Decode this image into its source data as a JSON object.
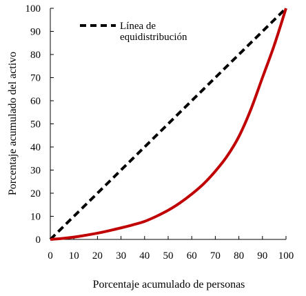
{
  "chart_data": {
    "type": "line",
    "title": "",
    "xlabel": "Porcentaje acumulado  de personas",
    "ylabel": "Porcentaje acumulado del activo",
    "xlim": [
      0,
      100
    ],
    "ylim": [
      0,
      100
    ],
    "x_ticks": [
      "0",
      "10",
      "20",
      "30",
      "40",
      "50",
      "60",
      "70",
      "80",
      "90",
      "100"
    ],
    "y_ticks": [
      "0",
      "10",
      "20",
      "30",
      "40",
      "50",
      "60",
      "70",
      "80",
      "90",
      "100"
    ],
    "grid": false,
    "legend_position": "top-left",
    "legend_entries": [
      "Línea de",
      "equidistribución"
    ],
    "series": [
      {
        "name": "Línea de equidistribución",
        "style": "dashed",
        "color": "#000000",
        "x": [
          0,
          100
        ],
        "y": [
          0,
          100
        ]
      },
      {
        "name": "",
        "style": "solid",
        "color": "#c00000",
        "x": [
          0,
          5,
          10,
          15,
          20,
          25,
          30,
          35,
          40,
          45,
          50,
          55,
          60,
          65,
          70,
          75,
          80,
          85,
          90,
          95,
          100
        ],
        "y": [
          0,
          0.4,
          1,
          1.8,
          2.7,
          3.8,
          5,
          6.3,
          7.8,
          10,
          12.6,
          15.8,
          19.6,
          24,
          29.5,
          36,
          44.5,
          56,
          70,
          84,
          100
        ]
      }
    ]
  }
}
